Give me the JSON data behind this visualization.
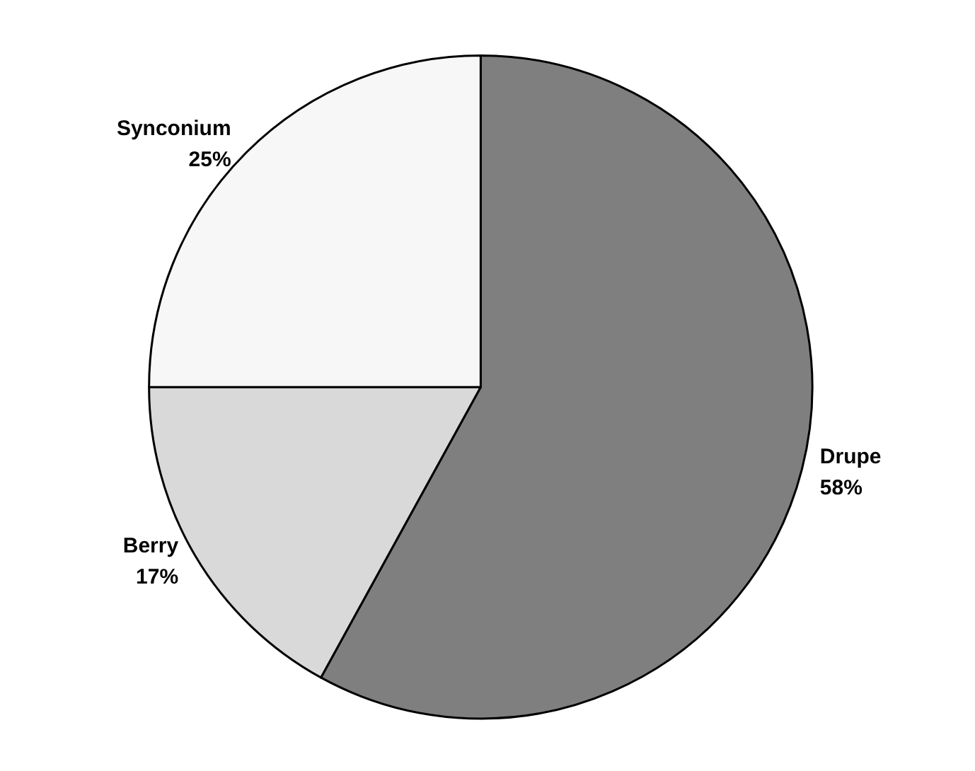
{
  "chart_data": {
    "type": "pie",
    "categories": [
      "Drupe",
      "Berry",
      "Synconium"
    ],
    "values": [
      58,
      17,
      25
    ],
    "colors": [
      "#7f7f7f",
      "#d9d9d9",
      "#f7f7f7"
    ],
    "value_labels": [
      "58%",
      "17%",
      "25%"
    ]
  }
}
